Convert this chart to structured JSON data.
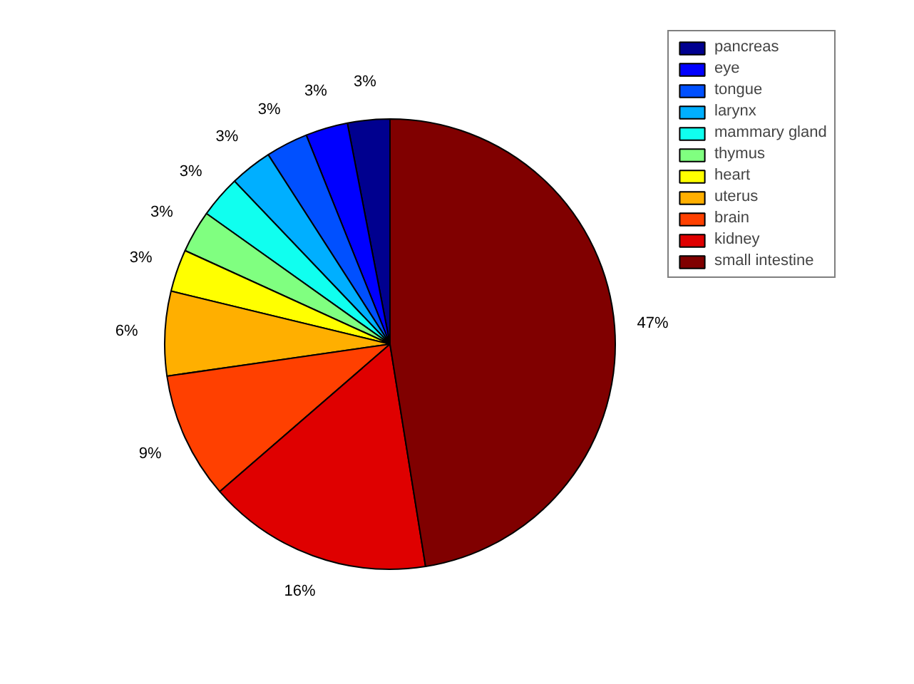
{
  "chart_data": {
    "type": "pie",
    "categories": [
      "pancreas",
      "eye",
      "tongue",
      "larynx",
      "mammary gland",
      "thymus",
      "heart",
      "uterus",
      "brain",
      "kidney",
      "small intestine"
    ],
    "values": [
      3,
      3,
      3,
      3,
      3,
      3,
      3,
      6,
      9,
      16,
      47
    ],
    "value_labels": [
      "3%",
      "3%",
      "3%",
      "3%",
      "3%",
      "3%",
      "3%",
      "6%",
      "9%",
      "16%",
      "47%"
    ],
    "colors": [
      "#00008f",
      "#0000ff",
      "#0050ff",
      "#00afff",
      "#10ffef",
      "#80ff80",
      "#ffff00",
      "#ffaf00",
      "#ff4000",
      "#df0000",
      "#800000"
    ],
    "legend": "top right"
  }
}
